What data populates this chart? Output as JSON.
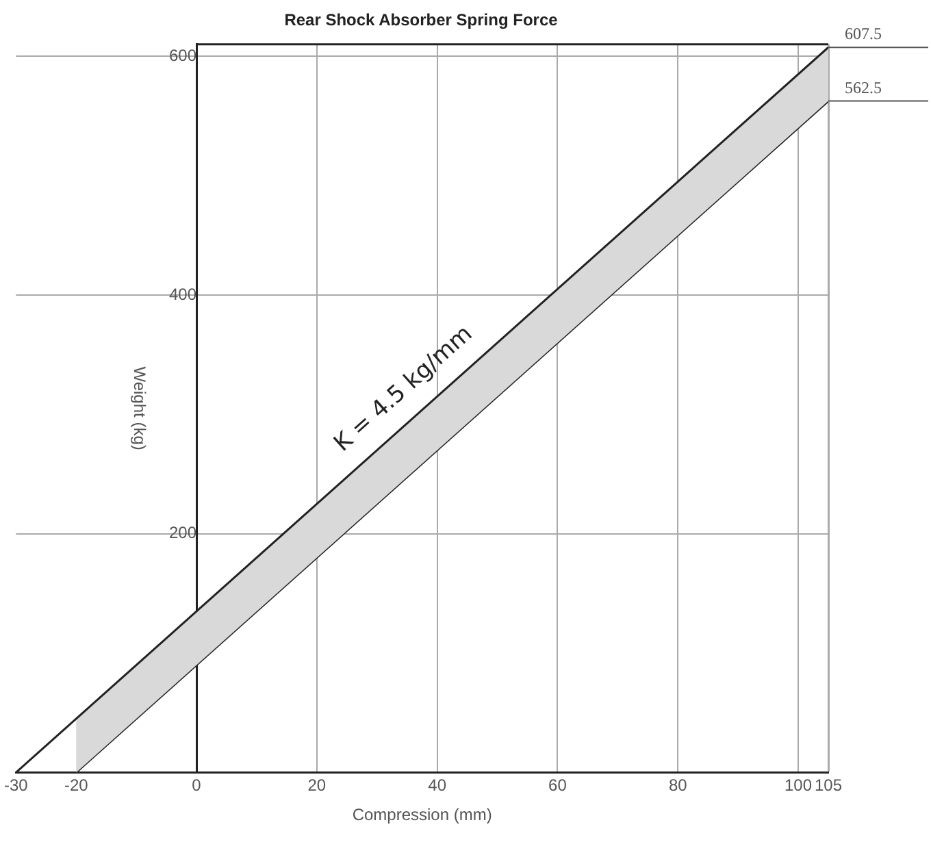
{
  "chart_data": {
    "type": "line",
    "title": "Rear Shock Absorber Spring Force",
    "xlabel": "Compression (mm)",
    "ylabel": "Weight (kg)",
    "series": [
      {
        "x": [
          -30,
          105
        ],
        "values": [
          0,
          607.5
        ],
        "color": "#222222",
        "value_labels": [
          null,
          "607.5"
        ]
      },
      {
        "x": [
          -20,
          105
        ],
        "values": [
          0,
          562.5
        ],
        "color": "#222222",
        "value_labels": [
          null,
          "562.5"
        ]
      }
    ],
    "annotations": [
      "K = 4.5 kg/mm"
    ],
    "xlim": [
      -30,
      105
    ],
    "xticks": [
      -30,
      -20,
      0,
      20,
      40,
      60,
      80,
      100,
      105
    ],
    "ylim": [
      0,
      610
    ],
    "yticks": [
      200,
      400,
      600
    ],
    "grid": true,
    "legend": false,
    "marker": "none",
    "line_style": "solid"
  }
}
